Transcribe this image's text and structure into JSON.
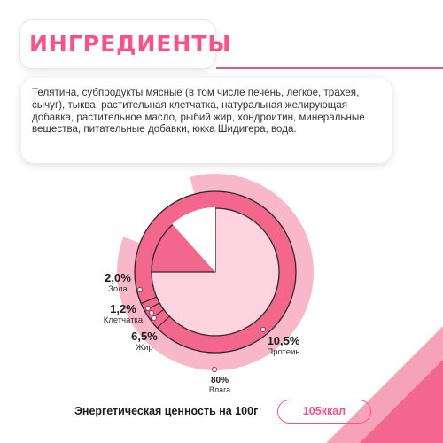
{
  "title": "ИНГРЕДИЕНТЫ",
  "ingredients": "Телятина, субпродукты мясные (в том числе печень, легкое, трахея, сычуг), тыква, растительная клетчатка, натуральная желирующая добавка, растительное масло, рыбий жир, хондроитин, минеральные вещества, питательные добавки, юкка Шидигера, вода.",
  "nutrients": [
    {
      "value": "2,0%",
      "name": "Зола"
    },
    {
      "value": "1,2%",
      "name": "Клетчатка"
    },
    {
      "value": "6,5%",
      "name": "Жир"
    },
    {
      "value": "10,5%",
      "name": "Протеин"
    },
    {
      "value": "80%",
      "name": "Влага"
    }
  ],
  "chart_data": {
    "type": "pie",
    "categories": [
      "Влага",
      "Протеин",
      "Жир",
      "Клетчатка",
      "Зола"
    ],
    "values": [
      80,
      10.5,
      6.5,
      1.2,
      2.0
    ]
  },
  "energy": {
    "label": "Энергетическая ценность на 100г",
    "value": "105ккал"
  },
  "colors": {
    "accent": "#ff4f8b",
    "ring_dark": "#f2678b",
    "ring_light": "#f9b8c9",
    "center_light": "#fcd3de"
  }
}
